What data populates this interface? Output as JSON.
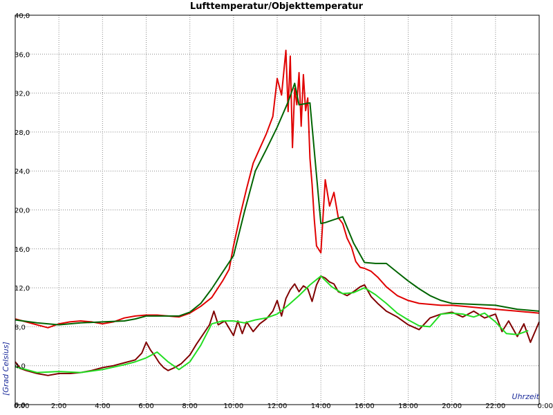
{
  "chart_data": {
    "type": "line",
    "title": "Lufttemperatur/Objekttemperatur",
    "xlabel": "Uhrzeit",
    "ylabel": "[Grad Celsius]",
    "xlim": [
      0,
      24
    ],
    "ylim": [
      0,
      40
    ],
    "grid": true,
    "x_ticks": [
      "0:00",
      "2:00",
      "4:00",
      "6:00",
      "8:00",
      "10:00",
      "12:00",
      "14:00",
      "16:00",
      "18:00",
      "20:00",
      "22:00",
      "0:00"
    ],
    "y_ticks": [
      "0,0",
      "4,0",
      "8,0",
      "12,0",
      "16,0",
      "20,0",
      "24,0",
      "28,0",
      "32,0",
      "36,0",
      "40,0"
    ],
    "series": [
      {
        "color": "#e00000",
        "x": [
          0,
          0.5,
          1,
          1.5,
          2,
          2.5,
          3,
          3.5,
          4,
          4.5,
          5,
          5.5,
          6,
          6.5,
          7,
          7.5,
          8,
          8.5,
          9,
          9.5,
          9.8,
          10,
          10.3,
          10.6,
          10.9,
          11.2,
          11.5,
          11.8,
          12,
          12.2,
          12.4,
          12.5,
          12.6,
          12.7,
          12.8,
          12.9,
          13,
          13.1,
          13.2,
          13.3,
          13.4,
          13.5,
          13.6,
          13.7,
          13.8,
          14,
          14.2,
          14.4,
          14.6,
          14.8,
          15,
          15.2,
          15.4,
          15.6,
          15.8,
          16,
          16.3,
          16.6,
          17,
          17.5,
          18,
          18.5,
          19,
          19.5,
          20,
          20.5,
          21,
          21.5,
          22,
          22.5,
          23,
          23.5,
          24
        ],
        "values": [
          8.8,
          8.5,
          8.2,
          7.9,
          8.3,
          8.5,
          8.6,
          8.5,
          8.3,
          8.5,
          8.9,
          9.1,
          9.2,
          9.2,
          9.1,
          9.0,
          9.4,
          10.1,
          11.0,
          12.7,
          13.9,
          16.3,
          19.4,
          22.2,
          24.8,
          26.3,
          27.8,
          29.6,
          33.5,
          31.8,
          36.4,
          30.1,
          35.8,
          26.4,
          32.5,
          30.8,
          34.1,
          28.6,
          33.9,
          30.2,
          31.5,
          25.3,
          22.6,
          19.0,
          16.3,
          15.6,
          23.1,
          20.4,
          21.8,
          19.2,
          18.6,
          17.1,
          16.2,
          14.7,
          14.1,
          14.0,
          13.7,
          13.1,
          12.1,
          11.2,
          10.7,
          10.4,
          10.3,
          10.2,
          10.2,
          10.1,
          10.0,
          9.9,
          9.8,
          9.7,
          9.6,
          9.5,
          9.4
        ]
      },
      {
        "color": "#006400",
        "x": [
          0,
          1,
          2,
          3,
          4,
          5,
          5.5,
          6,
          7,
          7.5,
          8,
          8.5,
          9,
          9.5,
          10,
          10.5,
          11,
          11.5,
          12,
          12.5,
          12.8,
          13,
          13.5,
          14,
          14.2,
          14.6,
          15,
          15.5,
          16,
          16.5,
          17,
          17.5,
          18,
          18.5,
          19,
          19.5,
          20,
          21,
          22,
          23,
          24
        ],
        "values": [
          8.7,
          8.4,
          8.2,
          8.4,
          8.5,
          8.6,
          8.8,
          9.1,
          9.1,
          9.1,
          9.5,
          10.4,
          11.9,
          13.6,
          15.3,
          19.8,
          24.0,
          26.2,
          28.5,
          31.1,
          33.0,
          30.8,
          31.0,
          18.6,
          18.7,
          19.0,
          19.3,
          16.6,
          14.6,
          14.5,
          14.5,
          13.6,
          12.7,
          11.9,
          11.2,
          10.7,
          10.4,
          10.3,
          10.2,
          9.8,
          9.6
        ]
      },
      {
        "color": "#800000",
        "x": [
          0,
          0.25,
          0.5,
          1,
          1.5,
          2,
          2.5,
          3,
          3.5,
          4,
          4.5,
          5,
          5.5,
          5.8,
          6,
          6.2,
          6.4,
          6.6,
          6.8,
          7,
          7.3,
          7.6,
          8,
          8.3,
          8.6,
          8.9,
          9.1,
          9.3,
          9.6,
          10,
          10.2,
          10.4,
          10.6,
          10.9,
          11.2,
          11.5,
          11.8,
          12,
          12.2,
          12.4,
          12.6,
          12.8,
          13,
          13.2,
          13.4,
          13.6,
          13.8,
          14,
          14.2,
          14.4,
          14.6,
          14.8,
          15,
          15.2,
          15.5,
          15.8,
          16,
          16.3,
          16.6,
          17,
          17.5,
          18,
          18.5,
          19,
          19.5,
          20,
          20.5,
          21,
          21.5,
          22,
          22.3,
          22.6,
          23,
          23.3,
          23.6,
          24
        ],
        "values": [
          4.4,
          3.7,
          3.5,
          3.2,
          3.0,
          3.2,
          3.2,
          3.3,
          3.5,
          3.8,
          4.0,
          4.3,
          4.6,
          5.3,
          6.4,
          5.6,
          5.0,
          4.3,
          3.8,
          3.5,
          3.8,
          4.2,
          5.1,
          6.2,
          7.2,
          8.2,
          9.6,
          8.2,
          8.6,
          7.1,
          8.6,
          7.3,
          8.5,
          7.5,
          8.3,
          8.8,
          9.6,
          10.7,
          9.1,
          10.9,
          11.8,
          12.4,
          11.6,
          12.2,
          11.9,
          10.6,
          12.3,
          13.2,
          13.0,
          12.6,
          12.4,
          11.6,
          11.4,
          11.2,
          11.6,
          12.1,
          12.3,
          11.1,
          10.4,
          9.6,
          9.0,
          8.2,
          7.7,
          8.9,
          9.3,
          9.5,
          9.0,
          9.6,
          8.9,
          9.3,
          7.5,
          8.6,
          7.0,
          8.3,
          6.4,
          8.5
        ]
      },
      {
        "color": "#22dd22",
        "x": [
          0,
          1,
          2,
          3,
          4,
          5,
          5.5,
          6,
          6.5,
          7,
          7.5,
          8,
          8.5,
          9,
          9.5,
          10,
          10.5,
          11,
          11.5,
          12,
          12.5,
          13,
          13.5,
          14,
          14.5,
          15,
          15.5,
          16,
          16.5,
          17,
          17.5,
          18,
          18.5,
          19,
          19.5,
          20,
          20.5,
          21,
          21.5,
          22,
          22.5,
          23,
          23.5
        ],
        "values": [
          3.9,
          3.3,
          3.4,
          3.3,
          3.6,
          4.1,
          4.4,
          4.8,
          5.4,
          4.4,
          3.6,
          4.4,
          6.1,
          8.3,
          8.6,
          8.6,
          8.4,
          8.7,
          8.9,
          9.3,
          10.2,
          11.2,
          12.3,
          13.2,
          12.1,
          11.4,
          11.5,
          12.0,
          11.3,
          10.4,
          9.4,
          8.7,
          8.1,
          8.0,
          9.3,
          9.4,
          9.3,
          9.0,
          9.4,
          8.5,
          7.3,
          7.2,
          7.6
        ]
      }
    ]
  }
}
